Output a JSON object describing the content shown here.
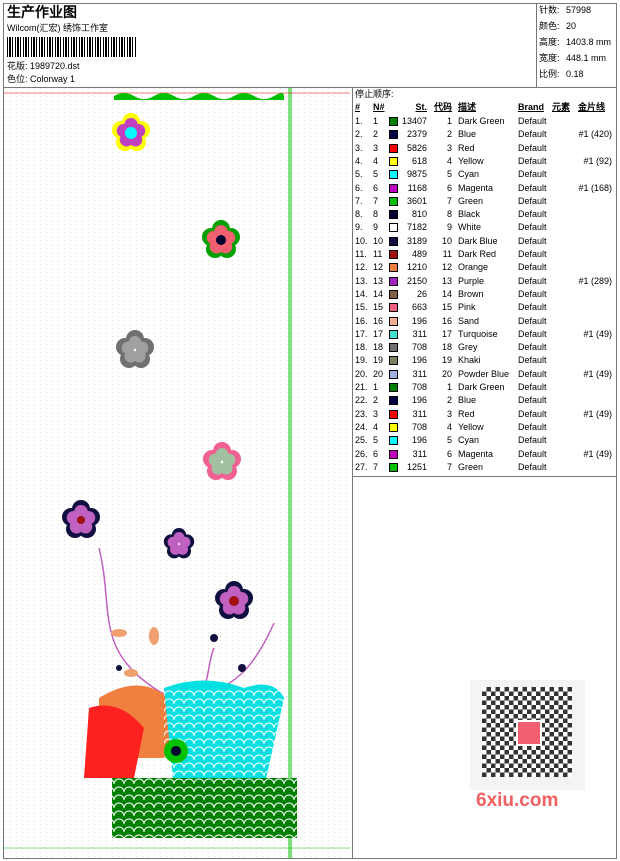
{
  "header": {
    "title": "生产作业图",
    "studio": "Wilcom(汇宏) 绣饰工作室",
    "design": "花版: 1989720.dst",
    "colorway": "色位: Colorway 1"
  },
  "info": [
    {
      "label": "针数:",
      "value": "57998"
    },
    {
      "label": "颜色:",
      "value": "20"
    },
    {
      "label": "高度:",
      "value": "1403.8 mm"
    },
    {
      "label": "宽度:",
      "value": "448.1 mm"
    },
    {
      "label": "比例:",
      "value": "0.18"
    }
  ],
  "table": {
    "caption": "停止顺序:",
    "columns": [
      "#",
      "N#",
      "St.",
      "代码",
      "描述",
      "Brand",
      "元素",
      "金片线"
    ],
    "rows": [
      {
        "idx": "1.",
        "n": "1",
        "color": "#008000",
        "st": "13407",
        "code": "1",
        "desc": "Dark Green",
        "brand": "Default"
      },
      {
        "idx": "2.",
        "n": "2",
        "color": "#000040",
        "st": "2379",
        "code": "2",
        "desc": "Blue",
        "brand": "Default",
        "sequin": "#1 (420)"
      },
      {
        "idx": "3.",
        "n": "3",
        "color": "#ff0000",
        "st": "5826",
        "code": "3",
        "desc": "Red",
        "brand": "Default"
      },
      {
        "idx": "4.",
        "n": "4",
        "color": "#ffff00",
        "st": "618",
        "code": "4",
        "desc": "Yellow",
        "brand": "Default",
        "sequin": "#1 (92)"
      },
      {
        "idx": "5.",
        "n": "5",
        "color": "#00ffff",
        "st": "9875",
        "code": "5",
        "desc": "Cyan",
        "brand": "Default"
      },
      {
        "idx": "6.",
        "n": "6",
        "color": "#c000c0",
        "st": "1168",
        "code": "6",
        "desc": "Magenta",
        "brand": "Default",
        "sequin": "#1 (168)"
      },
      {
        "idx": "7.",
        "n": "7",
        "color": "#00c000",
        "st": "3601",
        "code": "7",
        "desc": "Green",
        "brand": "Default"
      },
      {
        "idx": "8.",
        "n": "8",
        "color": "#000030",
        "st": "810",
        "code": "8",
        "desc": "Black",
        "brand": "Default"
      },
      {
        "idx": "9.",
        "n": "9",
        "color": "#ffffff",
        "st": "7182",
        "code": "9",
        "desc": "White",
        "brand": "Default"
      },
      {
        "idx": "10.",
        "n": "10",
        "color": "#101040",
        "st": "3189",
        "code": "10",
        "desc": "Dark Blue",
        "brand": "Default"
      },
      {
        "idx": "11.",
        "n": "11",
        "color": "#a01010",
        "st": "489",
        "code": "11",
        "desc": "Dark Red",
        "brand": "Default"
      },
      {
        "idx": "12.",
        "n": "12",
        "color": "#f08040",
        "st": "1210",
        "code": "12",
        "desc": "Orange",
        "brand": "Default"
      },
      {
        "idx": "13.",
        "n": "13",
        "color": "#a020c0",
        "st": "2150",
        "code": "13",
        "desc": "Purple",
        "brand": "Default",
        "sequin": "#1 (289)"
      },
      {
        "idx": "14.",
        "n": "14",
        "color": "#806040",
        "st": "26",
        "code": "14",
        "desc": "Brown",
        "brand": "Default"
      },
      {
        "idx": "15.",
        "n": "15",
        "color": "#f06080",
        "st": "663",
        "code": "15",
        "desc": "Pink",
        "brand": "Default"
      },
      {
        "idx": "16.",
        "n": "16",
        "color": "#f0b090",
        "st": "196",
        "code": "16",
        "desc": "Sand",
        "brand": "Default"
      },
      {
        "idx": "17.",
        "n": "17",
        "color": "#40e0d0",
        "st": "311",
        "code": "17",
        "desc": "Turquoise",
        "brand": "Default",
        "sequin": "#1 (49)"
      },
      {
        "idx": "18.",
        "n": "18",
        "color": "#707070",
        "st": "708",
        "code": "18",
        "desc": "Grey",
        "brand": "Default"
      },
      {
        "idx": "19.",
        "n": "19",
        "color": "#808060",
        "st": "196",
        "code": "19",
        "desc": "Khaki",
        "brand": "Default"
      },
      {
        "idx": "20.",
        "n": "20",
        "color": "#a0b0e0",
        "st": "311",
        "code": "20",
        "desc": "Powder Blue",
        "brand": "Default",
        "sequin": "#1 (49)"
      },
      {
        "idx": "21.",
        "n": "1",
        "color": "#008000",
        "st": "708",
        "code": "1",
        "desc": "Dark Green",
        "brand": "Default"
      },
      {
        "idx": "22.",
        "n": "2",
        "color": "#000040",
        "st": "196",
        "code": "2",
        "desc": "Blue",
        "brand": "Default"
      },
      {
        "idx": "23.",
        "n": "3",
        "color": "#ff0000",
        "st": "311",
        "code": "3",
        "desc": "Red",
        "brand": "Default",
        "sequin": "#1 (49)"
      },
      {
        "idx": "24.",
        "n": "4",
        "color": "#ffff00",
        "st": "708",
        "code": "4",
        "desc": "Yellow",
        "brand": "Default"
      },
      {
        "idx": "25.",
        "n": "5",
        "color": "#00ffff",
        "st": "196",
        "code": "5",
        "desc": "Cyan",
        "brand": "Default"
      },
      {
        "idx": "26.",
        "n": "6",
        "color": "#c000c0",
        "st": "311",
        "code": "6",
        "desc": "Magenta",
        "brand": "Default",
        "sequin": "#1 (49)"
      },
      {
        "idx": "27.",
        "n": "7",
        "color": "#00c000",
        "st": "1251",
        "code": "7",
        "desc": "Green",
        "brand": "Default"
      }
    ]
  },
  "watermark": "6xiu.com"
}
